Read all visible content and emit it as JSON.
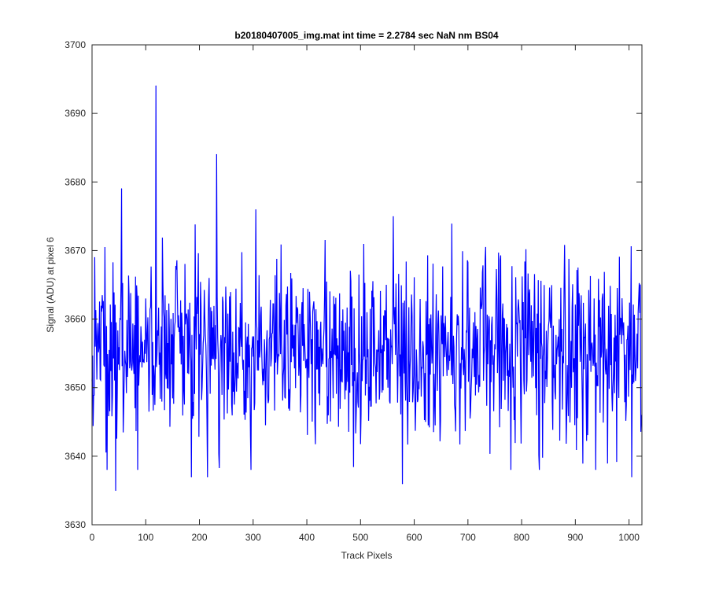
{
  "chart_data": {
    "type": "line",
    "title": "b20180407005_img.mat int time = 2.2784 sec  NaN nm BS04",
    "xlabel": "Track Pixels",
    "ylabel": "Signal (ADU) at pixel 6",
    "xlim": [
      0,
      1024
    ],
    "ylim": [
      3630,
      3700
    ],
    "xticks": [
      0,
      100,
      200,
      300,
      400,
      500,
      600,
      700,
      800,
      900,
      1000
    ],
    "yticks": [
      3630,
      3640,
      3650,
      3660,
      3670,
      3680,
      3690,
      3700
    ],
    "grid": false,
    "line_color": "#0000ff",
    "series": [
      {
        "baseline": 3656,
        "noise_amplitude": 9,
        "num_points": 1024,
        "highlights": [
          {
            "x": 44,
            "y": 3635
          },
          {
            "x": 55,
            "y": 3679
          },
          {
            "x": 119,
            "y": 3694
          },
          {
            "x": 185,
            "y": 3637
          },
          {
            "x": 215,
            "y": 3637
          },
          {
            "x": 232,
            "y": 3684
          },
          {
            "x": 578,
            "y": 3636
          },
          {
            "x": 960,
            "y": 3639
          },
          {
            "x": 1005,
            "y": 3637
          }
        ]
      }
    ]
  }
}
